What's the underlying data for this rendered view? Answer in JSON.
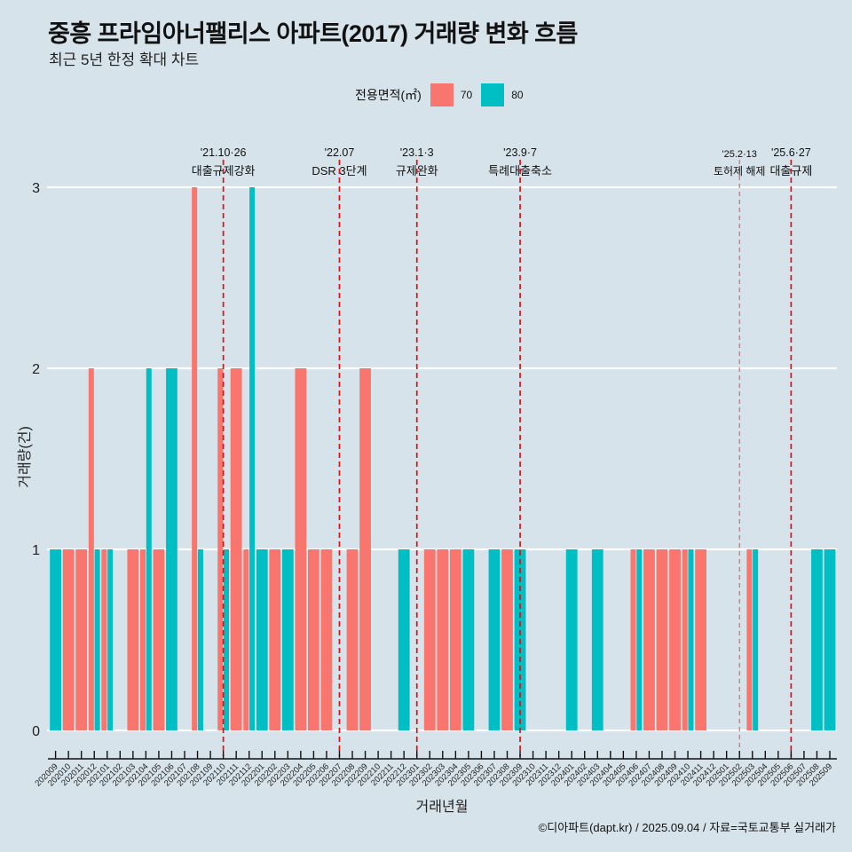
{
  "header": {
    "title": "중흥 프라임아너팰리스 아파트(2017) 거래량 변화 흐름",
    "subtitle": "최근 5년 한정 확대 차트"
  },
  "legend": {
    "title": "전용면적(㎡)",
    "items": [
      {
        "label": "70",
        "color": "#f8766d"
      },
      {
        "label": "80",
        "color": "#00bfc4"
      }
    ]
  },
  "caption": "©디아파트(dapt.kr) / 2025.09.04 / 자료=국토교통부 실거래가",
  "chart_data": {
    "type": "bar",
    "title": "중흥 프라임아너팰리스 아파트(2017) 거래량 변화 흐름",
    "subtitle": "최근 5년 한정 확대 차트",
    "xlabel": "거래년월",
    "ylabel": "거래량(건)",
    "ylim": [
      0,
      3
    ],
    "yticks": [
      0,
      1,
      2,
      3
    ],
    "grid": true,
    "legend_position": "top",
    "categories": [
      "202009",
      "202010",
      "202011",
      "202012",
      "202101",
      "202102",
      "202103",
      "202104",
      "202105",
      "202106",
      "202107",
      "202108",
      "202109",
      "202110",
      "202111",
      "202112",
      "202201",
      "202202",
      "202203",
      "202204",
      "202205",
      "202206",
      "202207",
      "202208",
      "202209",
      "202210",
      "202211",
      "202212",
      "202301",
      "202302",
      "202303",
      "202304",
      "202305",
      "202306",
      "202307",
      "202308",
      "202309",
      "202310",
      "202311",
      "202312",
      "202401",
      "202402",
      "202403",
      "202404",
      "202405",
      "202406",
      "202407",
      "202408",
      "202409",
      "202410",
      "202411",
      "202412",
      "202501",
      "202502",
      "202503",
      "202504",
      "202505",
      "202506",
      "202507",
      "202508",
      "202509"
    ],
    "series": [
      {
        "name": "70",
        "color": "#f8766d",
        "values": [
          0,
          1,
          1,
          2,
          1,
          0,
          1,
          1,
          1,
          0,
          0,
          3,
          0,
          2,
          2,
          1,
          0,
          1,
          0,
          2,
          1,
          1,
          0,
          1,
          2,
          0,
          0,
          0,
          0,
          1,
          1,
          1,
          0,
          0,
          0,
          1,
          0,
          0,
          0,
          0,
          0,
          0,
          0,
          0,
          0,
          1,
          1,
          1,
          1,
          1,
          1,
          0,
          0,
          0,
          1,
          0,
          0,
          0,
          0,
          0,
          0
        ]
      },
      {
        "name": "80",
        "color": "#00bfc4",
        "values": [
          1,
          0,
          0,
          1,
          1,
          0,
          0,
          2,
          0,
          2,
          0,
          1,
          0,
          1,
          0,
          3,
          1,
          0,
          1,
          0,
          0,
          0,
          0,
          0,
          0,
          0,
          0,
          1,
          0,
          0,
          0,
          0,
          1,
          0,
          1,
          0,
          1,
          0,
          0,
          0,
          1,
          0,
          1,
          0,
          0,
          1,
          0,
          0,
          0,
          1,
          0,
          0,
          0,
          0,
          1,
          0,
          0,
          0,
          0,
          1,
          1
        ]
      }
    ],
    "annotations": [
      {
        "month": "202110",
        "date": "'21.10·26",
        "label": "대출규제강화",
        "style": "bold"
      },
      {
        "month": "202207",
        "date": "'22.07",
        "label": "DSR 3단계",
        "style": "bold"
      },
      {
        "month": "202301",
        "date": "'23.1·3",
        "label": "규제완화",
        "style": "bold"
      },
      {
        "month": "202309",
        "date": "'23.9·7",
        "label": "특례대출축소",
        "style": "bold"
      },
      {
        "month": "202502",
        "date": "'25.2·13",
        "label": "토허제 해제",
        "style": "light"
      },
      {
        "month": "202506",
        "date": "'25.6·27",
        "label": "대출규제",
        "style": "bold"
      }
    ]
  }
}
